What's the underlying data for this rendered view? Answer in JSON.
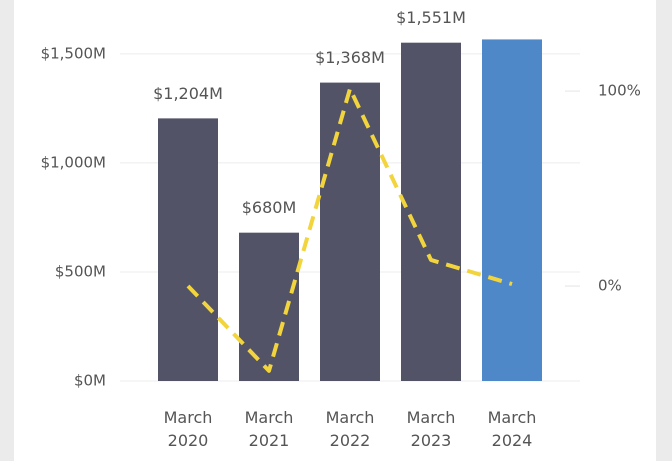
{
  "chart_data": {
    "type": "bar-line",
    "categories": [
      "March 2020",
      "March 2021",
      "March 2022",
      "March 2023",
      "March 2024"
    ],
    "series": [
      {
        "type": "bar",
        "colors": [
          "#525366",
          "#525366",
          "#525366",
          "#525366",
          "#4f88c9"
        ],
        "values": [
          1204,
          680,
          1368,
          1551,
          1566
        ],
        "value_labels": [
          "$1,204M",
          "$680M",
          "$1,368M",
          "$1,551M",
          null
        ]
      },
      {
        "type": "line",
        "axis": "y2",
        "color": "#f2d43d",
        "dashed": true,
        "values": [
          0,
          -43.5,
          101.2,
          13.4,
          1
        ]
      }
    ],
    "ylim": [
      0,
      1600
    ],
    "yticks": [
      {
        "value": 0,
        "label": "$0M"
      },
      {
        "value": 500,
        "label": "$500M"
      },
      {
        "value": 1000,
        "label": "$1,000M"
      },
      {
        "value": 1500,
        "label": "$1,500M"
      }
    ],
    "y2lim": [
      -48.7,
      130.3
    ],
    "y2ticks": [
      {
        "value": 0,
        "label": "0%"
      },
      {
        "value": 100,
        "label": "100%"
      }
    ],
    "grid": true
  }
}
